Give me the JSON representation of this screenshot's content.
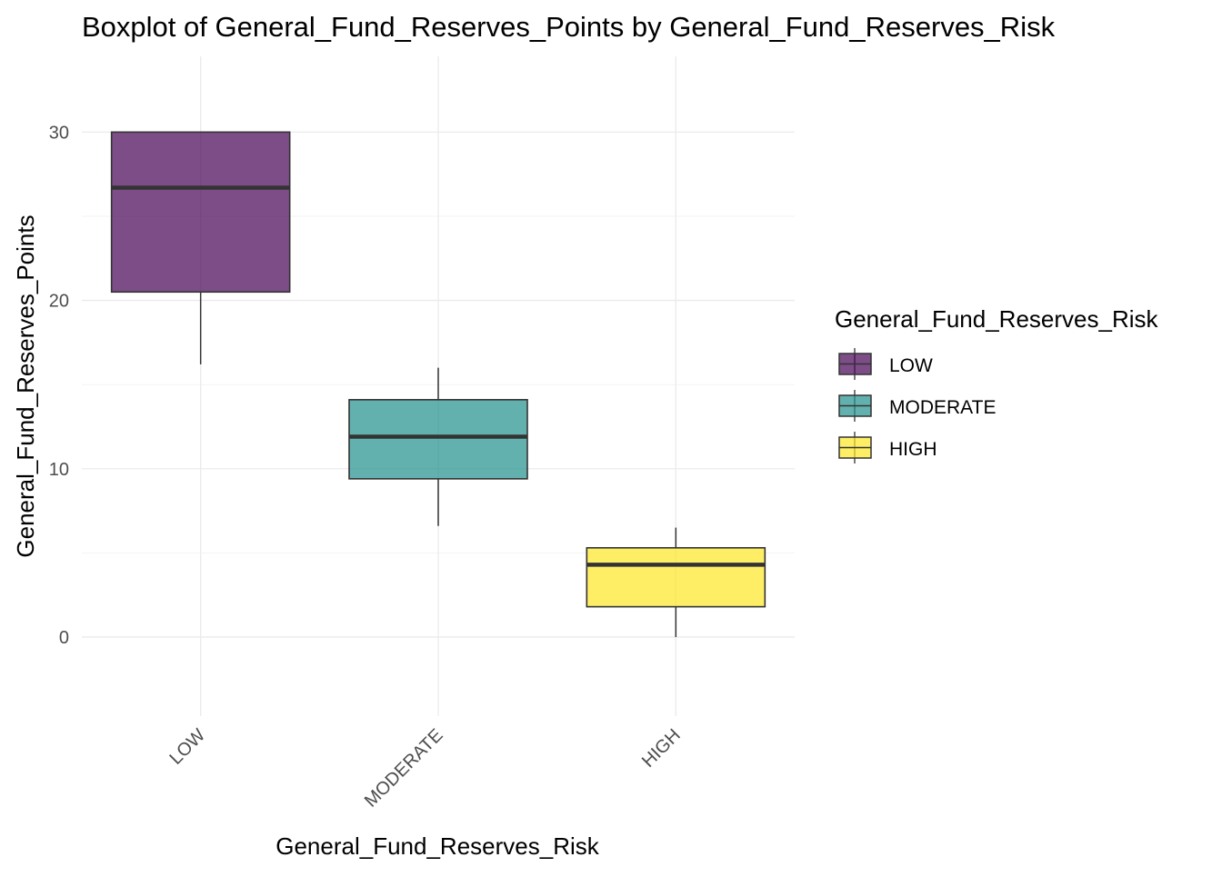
{
  "chart_data": {
    "type": "boxplot",
    "title": "Boxplot of General_Fund_Reserves_Points by General_Fund_Reserves_Risk",
    "xlabel": "General_Fund_Reserves_Risk",
    "ylabel": "General_Fund_Reserves_Points",
    "categories": [
      "LOW",
      "MODERATE",
      "HIGH"
    ],
    "y_ticks": [
      0,
      10,
      20,
      30
    ],
    "y_tick_labels": [
      "0",
      "10",
      "20",
      "30"
    ],
    "ylim": [
      -4.7,
      34.5
    ],
    "grid": true,
    "legend": {
      "title": "General_Fund_Reserves_Risk",
      "placement": "right",
      "entries": [
        "LOW",
        "MODERATE",
        "HIGH"
      ]
    },
    "series": [
      {
        "category": "LOW",
        "whisker_low": 16.2,
        "q1": 20.5,
        "median": 26.7,
        "q3": 30.0,
        "whisker_high": 30.0,
        "color": "#440154"
      },
      {
        "category": "MODERATE",
        "whisker_low": 6.6,
        "q1": 9.4,
        "median": 11.9,
        "q3": 14.1,
        "whisker_high": 16.0,
        "color": "#21908C"
      },
      {
        "category": "HIGH",
        "whisker_low": 0.0,
        "q1": 1.8,
        "median": 4.3,
        "q3": 5.3,
        "whisker_high": 6.5,
        "color": "#FDE725"
      }
    ]
  }
}
